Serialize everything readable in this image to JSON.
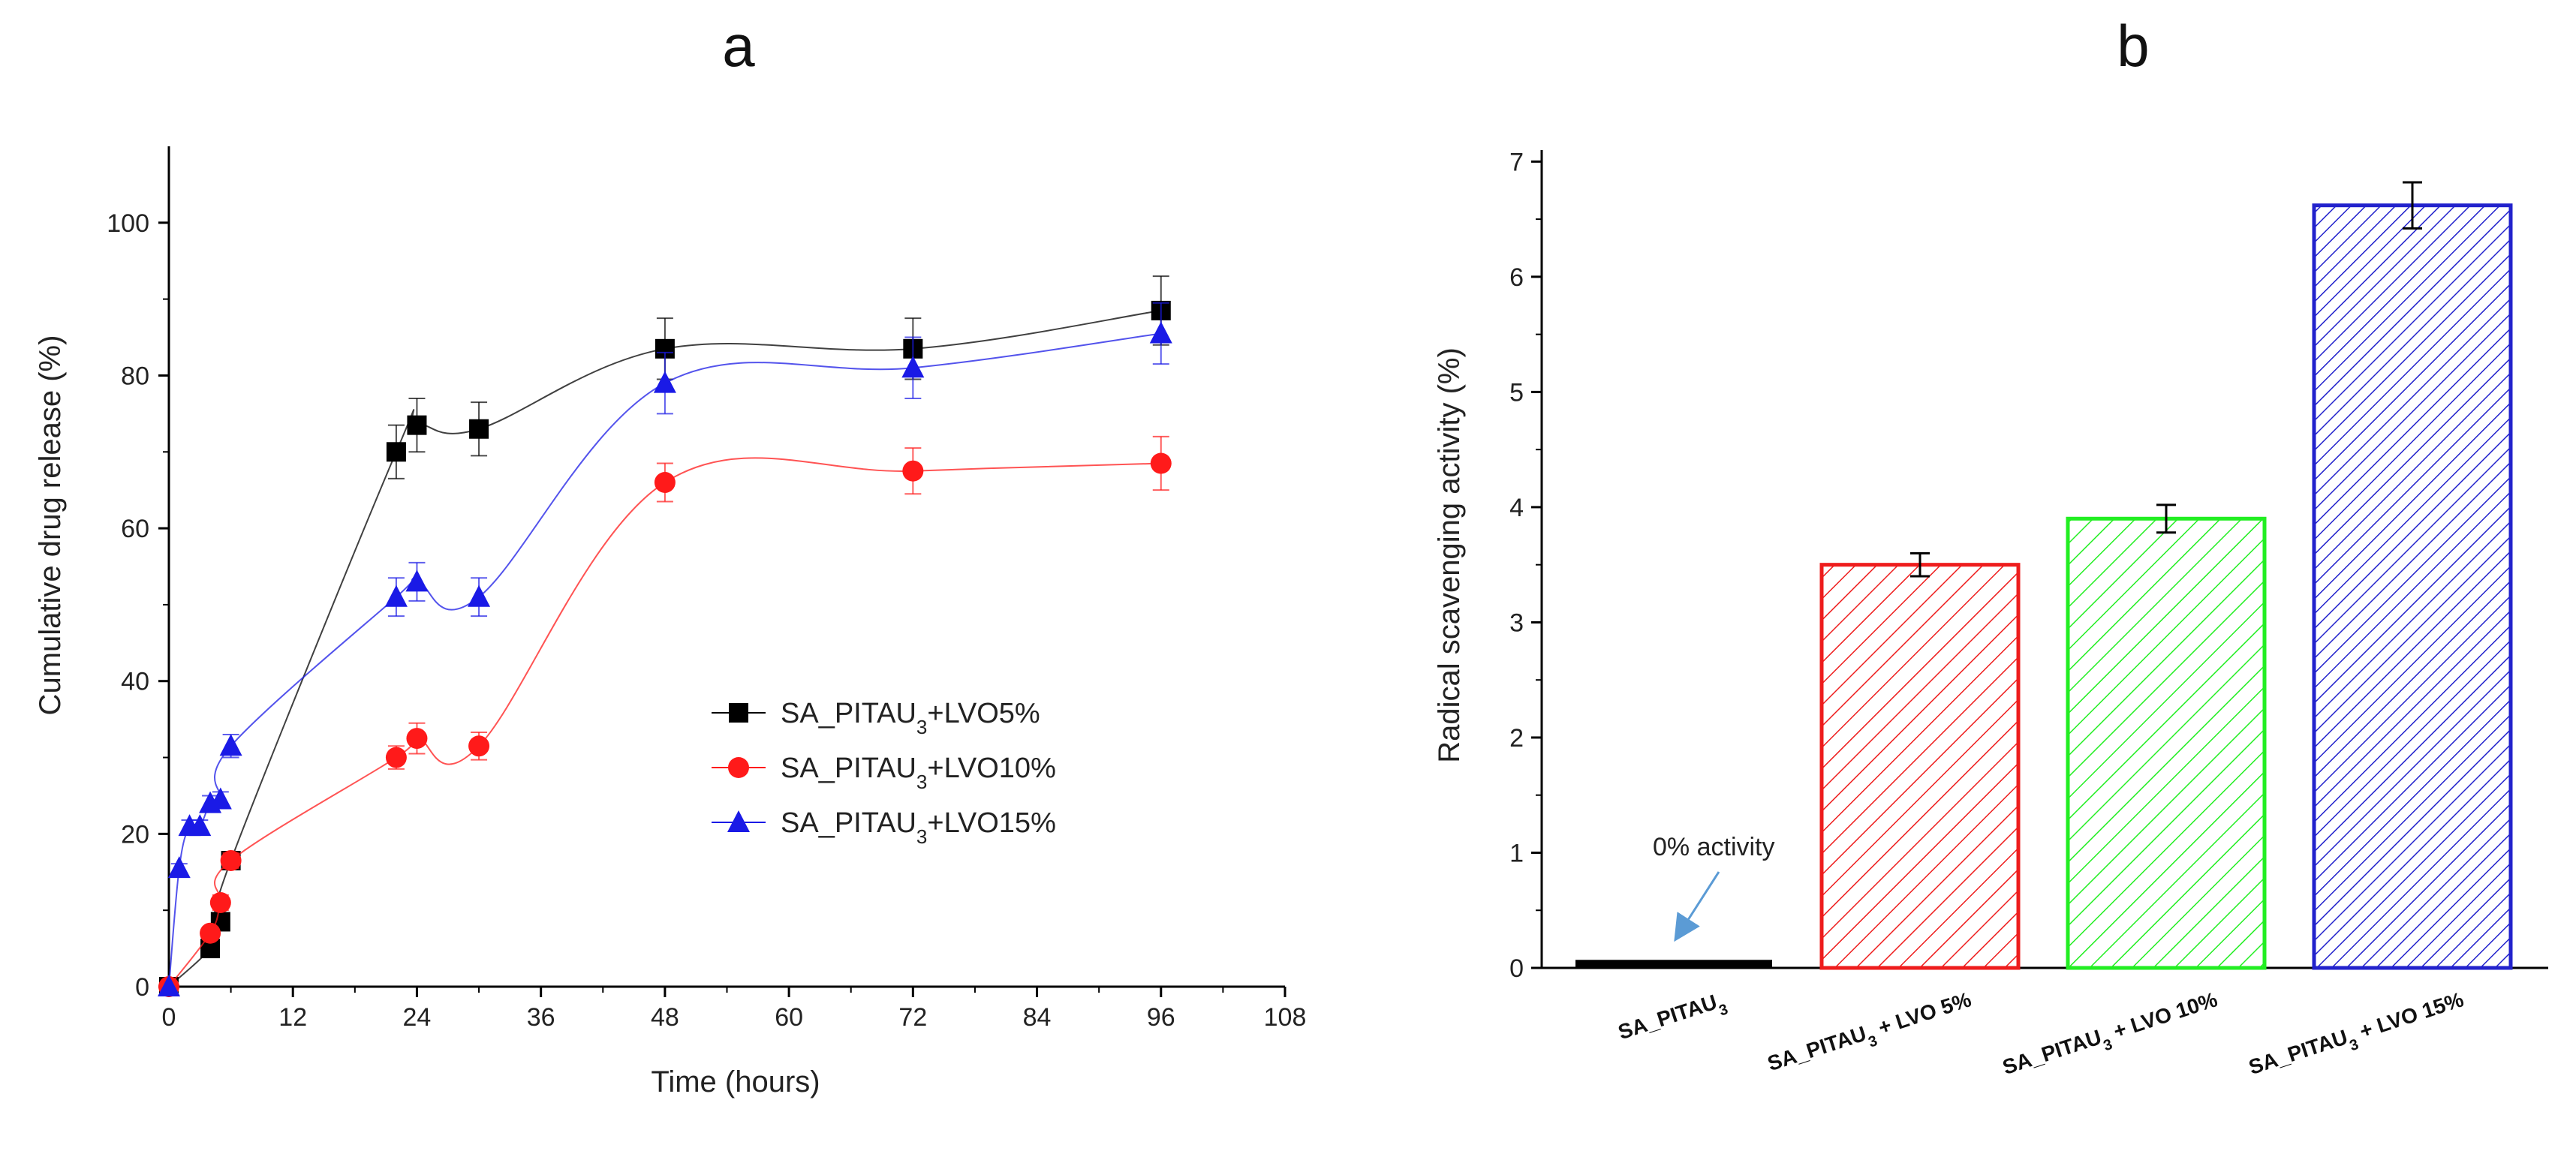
{
  "chart_data": [
    {
      "panel": "a",
      "type": "line",
      "xlabel": "Time (hours)",
      "ylabel": "Cumulative drug release (%)",
      "xlim": [
        0,
        108
      ],
      "ylim": [
        0,
        110
      ],
      "xticks": [
        0,
        12,
        24,
        36,
        48,
        60,
        72,
        84,
        96,
        108
      ],
      "yticks": [
        0,
        20,
        40,
        60,
        80,
        100
      ],
      "legend_position": "center-right",
      "series": [
        {
          "name": "SA_PITAU3+LVO5%",
          "prefix": "SA_PITAU",
          "sub": "3",
          "suffix": "+LVO5%",
          "color": "#000000",
          "marker": "square",
          "x": [
            0,
            4,
            5,
            6,
            22,
            24,
            30,
            48,
            72,
            96
          ],
          "y": [
            0,
            5,
            8.5,
            16.5,
            70,
            73.5,
            73,
            83.5,
            83.5,
            88.5
          ],
          "err": [
            0,
            0.8,
            1,
            1,
            3.5,
            3.5,
            3.5,
            4,
            4,
            4.5
          ]
        },
        {
          "name": "SA_PITAU3+LVO10%",
          "prefix": "SA_PITAU",
          "sub": "3",
          "suffix": "+LVO10%",
          "color": "#ff1a1a",
          "marker": "circle",
          "x": [
            0,
            4,
            5,
            6,
            22,
            24,
            30,
            48,
            72,
            96
          ],
          "y": [
            0,
            7,
            11,
            16.5,
            30,
            32.5,
            31.5,
            66,
            67.5,
            68.5
          ],
          "err": [
            0,
            0.8,
            1,
            1,
            1.5,
            2,
            1.8,
            2.5,
            3,
            3.5
          ]
        },
        {
          "name": "SA_PITAU3+LVO15%",
          "prefix": "SA_PITAU",
          "sub": "3",
          "suffix": "+LVO15%",
          "color": "#1a1ae6",
          "marker": "triangle",
          "x": [
            0,
            1,
            2,
            3,
            4,
            5,
            6,
            22,
            24,
            30,
            48,
            72,
            96
          ],
          "y": [
            0,
            15.5,
            21,
            21,
            24,
            24.5,
            31.5,
            51,
            53,
            51,
            79,
            81,
            85.5
          ],
          "err": [
            0,
            0.6,
            0.8,
            0.8,
            1,
            1,
            1.5,
            2.5,
            2.5,
            2.5,
            4,
            4,
            4
          ]
        }
      ]
    },
    {
      "panel": "b",
      "type": "bar",
      "ylabel": "Radical scavenging activity (%)",
      "ylim": [
        0,
        7.1
      ],
      "yticks": [
        0,
        1,
        2,
        3,
        4,
        5,
        6,
        7
      ],
      "categories": [
        {
          "prefix": "SA_PITAU",
          "sub": "3",
          "suffix": ""
        },
        {
          "prefix": "SA_PITAU",
          "sub": "3",
          "suffix": " + LVO 5%"
        },
        {
          "prefix": "SA_PITAU",
          "sub": "3",
          "suffix": " + LVO 10%"
        },
        {
          "prefix": "SA_PITAU",
          "sub": "3",
          "suffix": " + LVO 15%"
        }
      ],
      "values": [
        0.07,
        3.5,
        3.9,
        6.62
      ],
      "errors": [
        0,
        0.1,
        0.12,
        0.2
      ],
      "colors": [
        "#000000",
        "#ee1c1c",
        "#22ee22",
        "#2222cc"
      ],
      "annotation": "0% activity"
    }
  ]
}
